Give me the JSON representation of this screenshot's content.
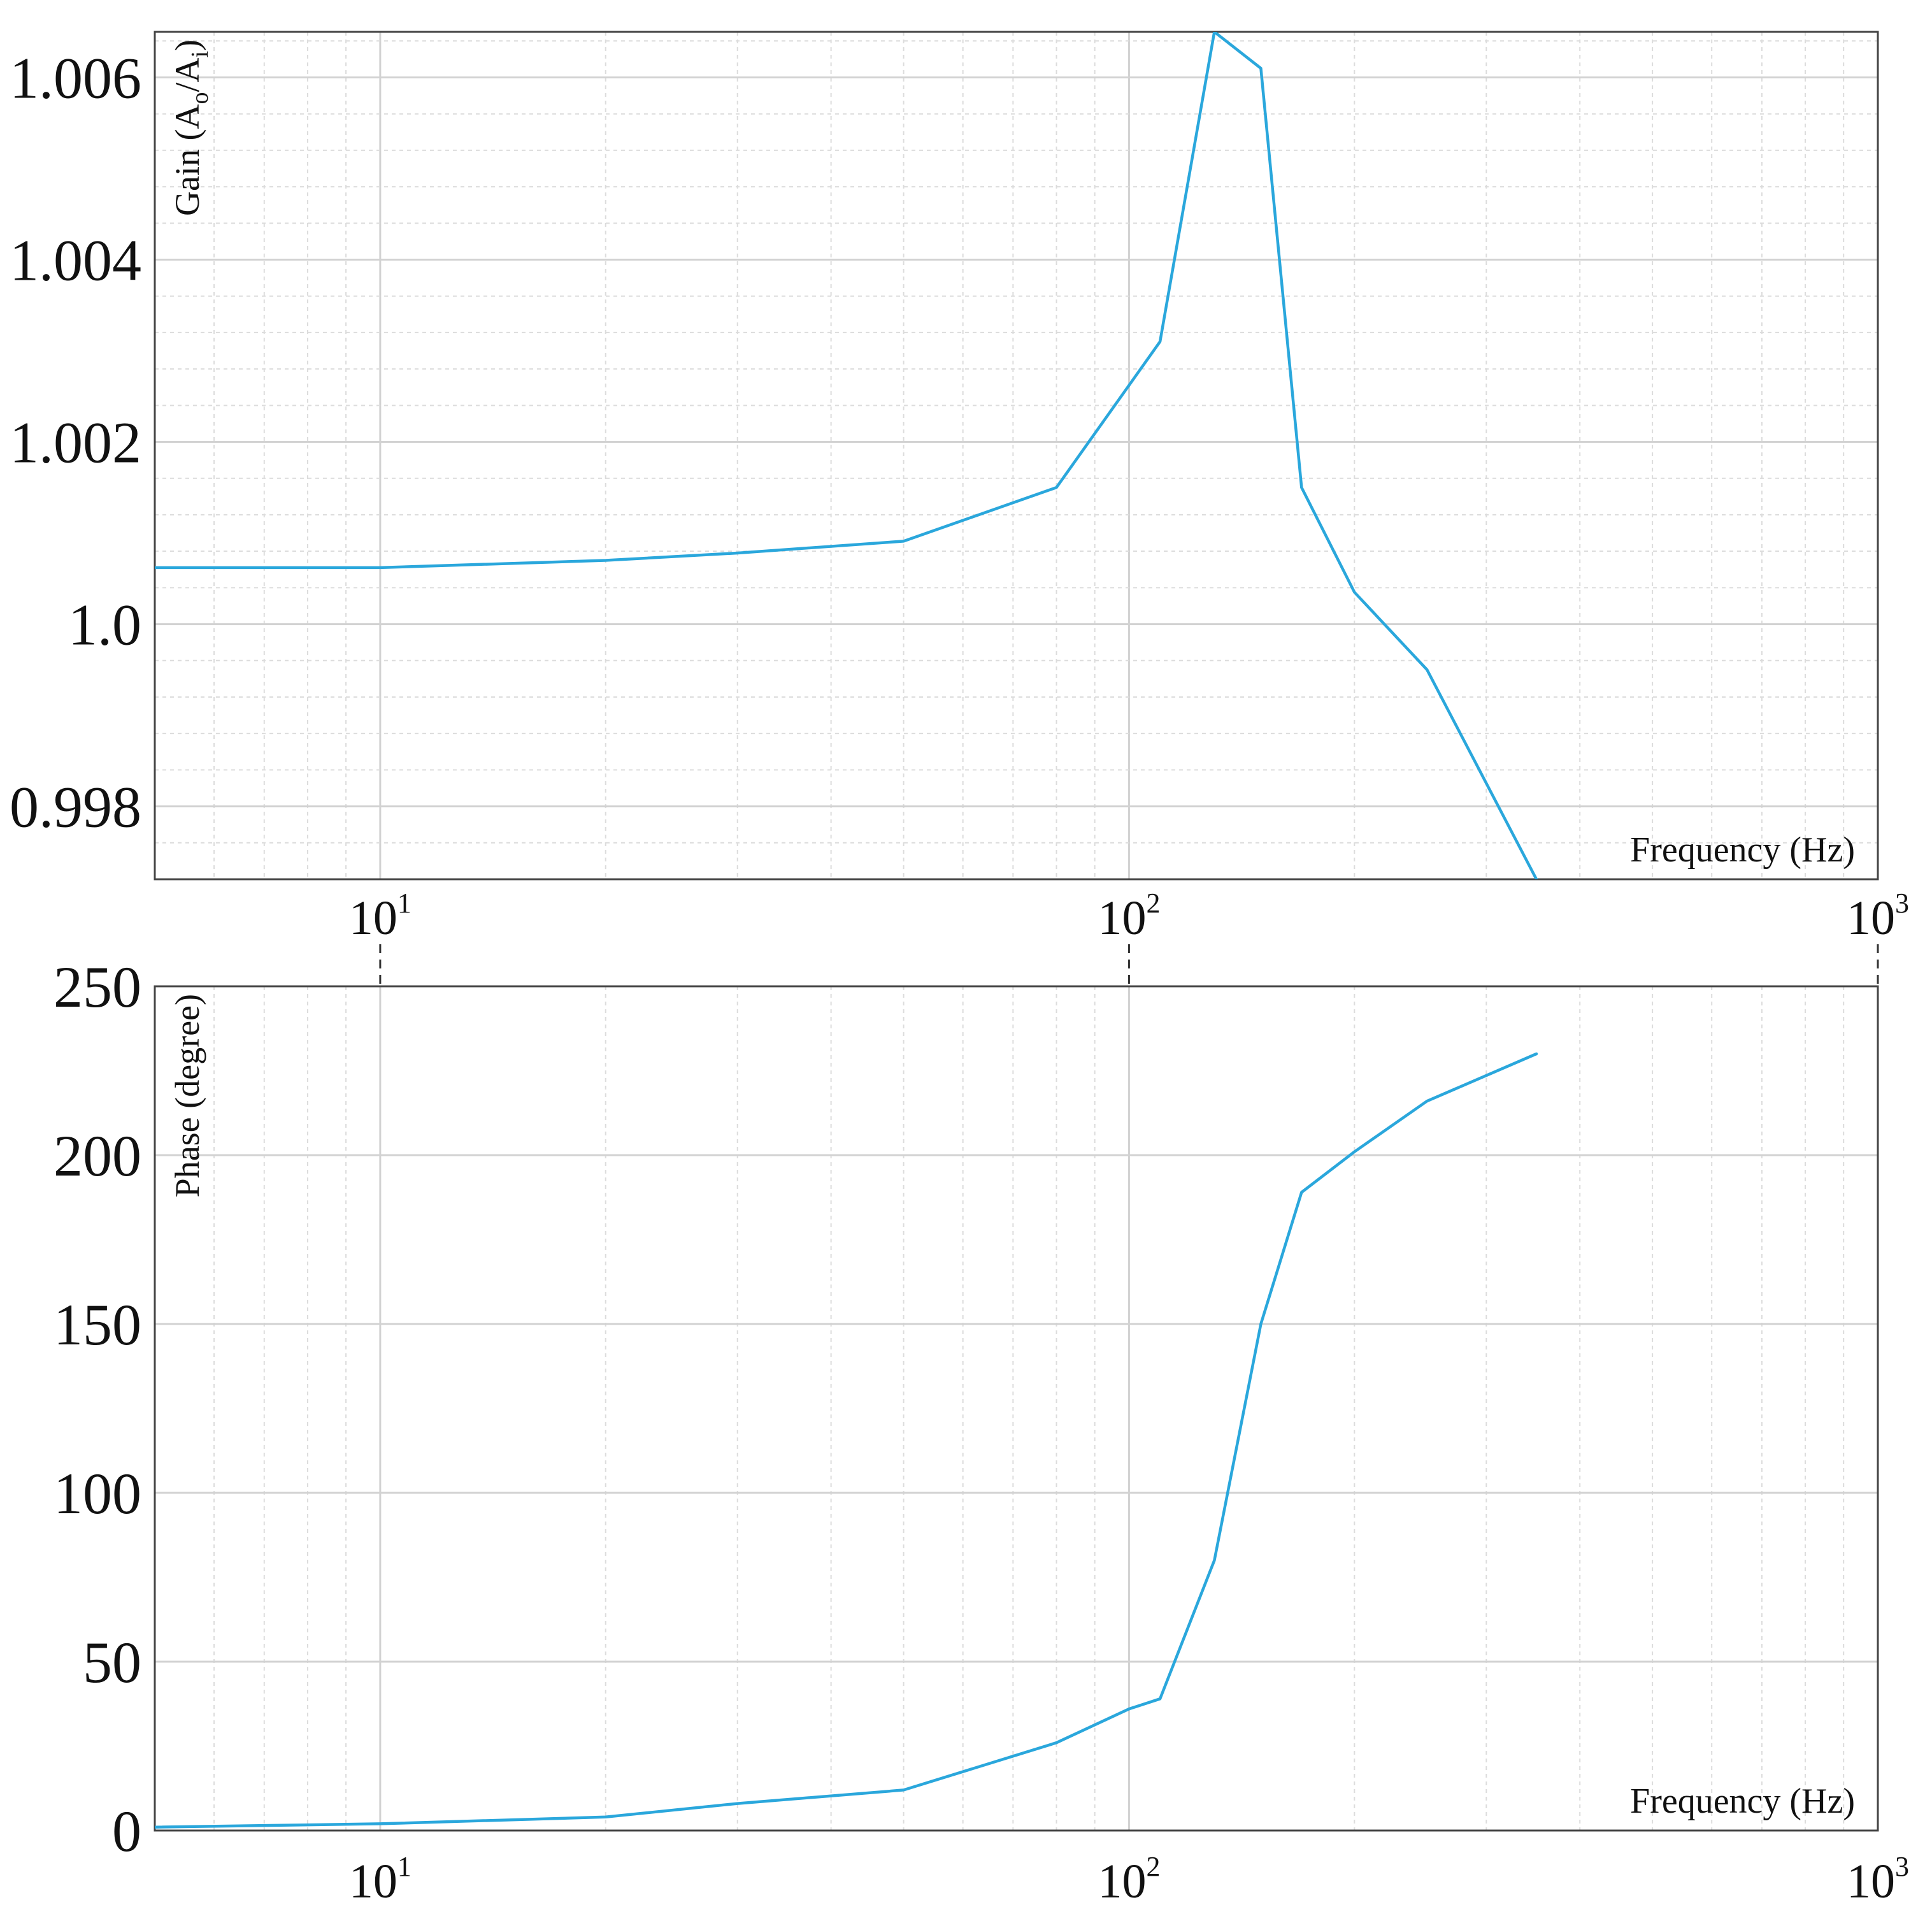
{
  "chart_data": [
    {
      "type": "line",
      "xscale": "log",
      "xlim": [
        5,
        1000
      ],
      "ylim": [
        0.9972,
        1.0065
      ],
      "xticks": [
        {
          "base": "10",
          "exp": "1",
          "value": 10
        },
        {
          "base": "10",
          "exp": "2",
          "value": 100
        },
        {
          "base": "10",
          "exp": "3",
          "value": 1000
        }
      ],
      "yticks": [
        {
          "label": "0.998",
          "value": 0.998
        },
        {
          "label": "1.0",
          "value": 1.0
        },
        {
          "label": "1.002",
          "value": 1.002
        },
        {
          "label": "1.004",
          "value": 1.004
        },
        {
          "label": "1.006",
          "value": 1.006
        }
      ],
      "ylabel": {
        "main": "Gain (A",
        "sub1": "o",
        "mid": "/A",
        "sub2": "i",
        "end": ")"
      },
      "xlabel": "Frequency (Hz)",
      "grid": true,
      "line_color": "#2aa7dc",
      "series": [
        {
          "x": [
            5,
            10,
            20,
            30,
            50,
            80,
            110,
            130,
            150,
            170,
            200,
            250,
            350
          ],
          "y": [
            1.00062,
            1.00062,
            1.0007,
            1.00078,
            1.00091,
            1.0015,
            1.0031,
            1.0065,
            1.0061,
            1.0015,
            1.00035,
            0.9995,
            0.9972
          ]
        }
      ]
    },
    {
      "type": "line",
      "xscale": "log",
      "xlim": [
        5,
        1000
      ],
      "ylim": [
        0,
        250
      ],
      "xticks": [
        {
          "base": "10",
          "exp": "1",
          "value": 10
        },
        {
          "base": "10",
          "exp": "2",
          "value": 100
        },
        {
          "base": "10",
          "exp": "3",
          "value": 1000
        }
      ],
      "yticks": [
        {
          "label": "0",
          "value": 0
        },
        {
          "label": "50",
          "value": 50
        },
        {
          "label": "100",
          "value": 100
        },
        {
          "label": "150",
          "value": 150
        },
        {
          "label": "200",
          "value": 200
        },
        {
          "label": "250",
          "value": 250
        }
      ],
      "ylabel": "Phase  (degree)",
      "xlabel": "Frequency (Hz)",
      "grid": true,
      "line_color": "#2aa7dc",
      "series": [
        {
          "x": [
            5,
            10,
            20,
            30,
            50,
            80,
            100,
            110,
            130,
            150,
            170,
            200,
            250,
            350
          ],
          "y": [
            1,
            2,
            4,
            8,
            12,
            26,
            36,
            39,
            80,
            150,
            189,
            201,
            216,
            230
          ]
        }
      ]
    }
  ]
}
